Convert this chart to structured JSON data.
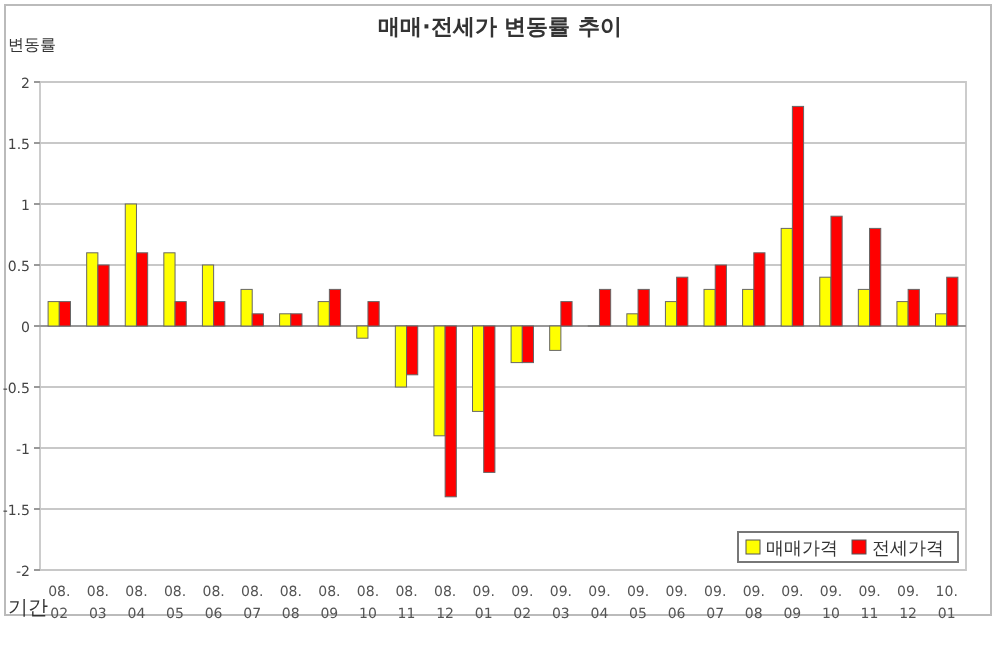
{
  "chart_data": {
    "type": "bar",
    "title": "매매·전세가 변동률 추이",
    "ylabel": "변동률",
    "xlabel": "기간",
    "categories": [
      "08.\n02",
      "08.\n03",
      "08.\n04",
      "08.\n05",
      "08.\n06",
      "08.\n07",
      "08.\n08",
      "08.\n09",
      "08.\n10",
      "08.\n11",
      "08.\n12",
      "09.\n01",
      "09.\n02",
      "09.\n03",
      "09.\n04",
      "09.\n05",
      "09.\n06",
      "09.\n07",
      "09.\n08",
      "09.\n09",
      "09.\n10",
      "09.\n11",
      "09.\n12",
      "10.\n01"
    ],
    "series": [
      {
        "name": "매매가격",
        "color": "#ffff00",
        "values": [
          0.2,
          0.6,
          1.0,
          0.6,
          0.5,
          0.3,
          0.1,
          0.2,
          -0.1,
          -0.5,
          -0.9,
          -0.7,
          -0.3,
          -0.2,
          0,
          0.1,
          0.2,
          0.3,
          0.3,
          0.8,
          0.4,
          0.3,
          0.2,
          0.1
        ]
      },
      {
        "name": "전세가격",
        "color": "#ff0000",
        "values": [
          0.2,
          0.5,
          0.6,
          0.2,
          0.2,
          0.1,
          0.1,
          0.3,
          0.2,
          -0.4,
          -1.4,
          -1.2,
          -0.3,
          0.2,
          0.3,
          0.3,
          0.4,
          0.5,
          0.6,
          1.8,
          0.9,
          0.8,
          0.3,
          0.4
        ]
      }
    ],
    "ylim": [
      -2,
      2
    ],
    "yticks": [
      -2,
      -1.5,
      -1,
      -0.5,
      0,
      0.5,
      1,
      1.5,
      2
    ],
    "grid": "y",
    "legend": "bottom right"
  }
}
